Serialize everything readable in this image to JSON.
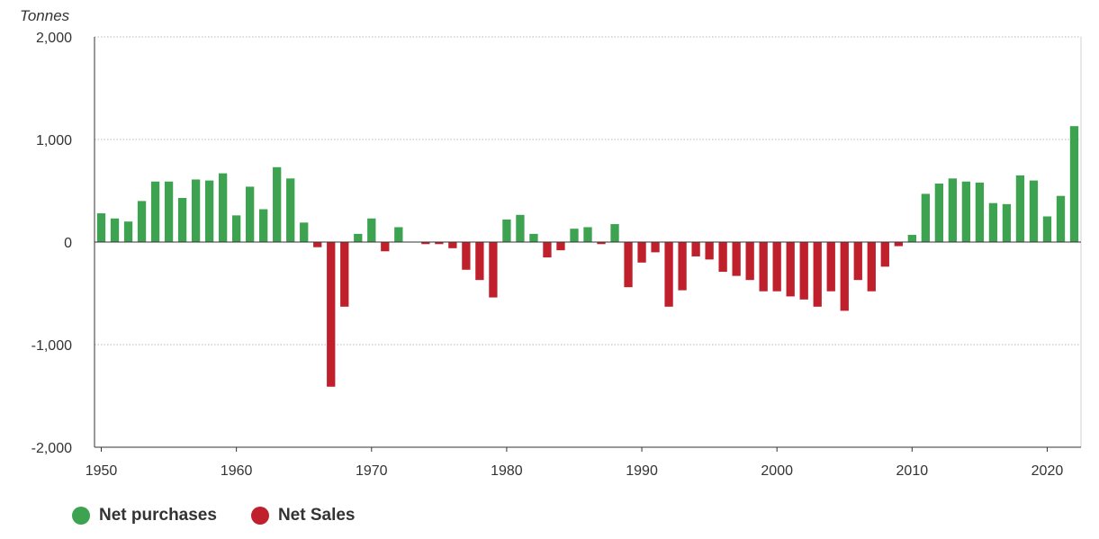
{
  "chart_data": {
    "type": "bar",
    "unit_label": "Tonnes",
    "x": [
      1950,
      1951,
      1952,
      1953,
      1954,
      1955,
      1956,
      1957,
      1958,
      1959,
      1960,
      1961,
      1962,
      1963,
      1964,
      1965,
      1966,
      1967,
      1968,
      1969,
      1970,
      1971,
      1972,
      1973,
      1974,
      1975,
      1976,
      1977,
      1978,
      1979,
      1980,
      1981,
      1982,
      1983,
      1984,
      1985,
      1986,
      1987,
      1988,
      1989,
      1990,
      1991,
      1992,
      1993,
      1994,
      1995,
      1996,
      1997,
      1998,
      1999,
      2000,
      2001,
      2002,
      2003,
      2004,
      2005,
      2006,
      2007,
      2008,
      2009,
      2010,
      2011,
      2012,
      2013,
      2014,
      2015,
      2016,
      2017,
      2018,
      2019,
      2020,
      2021,
      2022
    ],
    "values": [
      280,
      230,
      200,
      400,
      590,
      590,
      430,
      610,
      600,
      670,
      260,
      540,
      320,
      730,
      620,
      190,
      -50,
      -1410,
      -630,
      80,
      230,
      -90,
      145,
      0,
      -20,
      -20,
      -60,
      -270,
      -370,
      -540,
      220,
      265,
      80,
      -150,
      -80,
      130,
      145,
      -20,
      175,
      -440,
      -200,
      -100,
      -630,
      -470,
      -140,
      -170,
      -290,
      -330,
      -370,
      -480,
      -480,
      -530,
      -560,
      -630,
      -480,
      -670,
      -370,
      -480,
      -240,
      -40,
      70,
      470,
      570,
      620,
      590,
      580,
      380,
      370,
      650,
      600,
      250,
      450,
      1130
    ],
    "ylim": [
      -2000,
      2000
    ],
    "yticks": [
      -2000,
      -1000,
      0,
      1000,
      2000
    ],
    "ytick_labels": [
      "-2,000",
      "-1,000",
      "0",
      "1,000",
      "2,000"
    ],
    "xticks": [
      1950,
      1960,
      1970,
      1980,
      1990,
      2000,
      2010,
      2020
    ],
    "xtick_labels": [
      "1950",
      "1960",
      "1970",
      "1980",
      "1990",
      "2000",
      "2010",
      "2020"
    ],
    "grid": true,
    "legend_position": "bottom-left",
    "series": [
      {
        "name": "Net purchases",
        "sign": "positive",
        "color": "#3da351"
      },
      {
        "name": "Net Sales",
        "sign": "negative",
        "color": "#c0202c"
      }
    ]
  }
}
